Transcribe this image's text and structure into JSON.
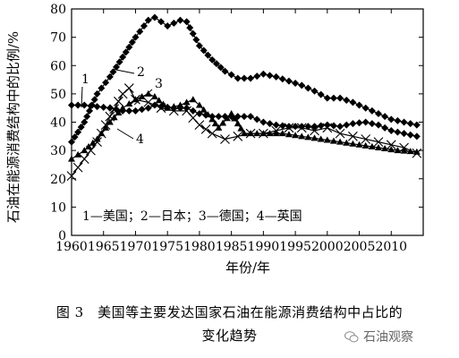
{
  "caption": {
    "line1": "图 3　美国等主要发达国家石油在能源消费结构中占比的",
    "line2": "变化趋势"
  },
  "watermark": {
    "text": "石油观察",
    "icon": "wechat-icon"
  },
  "chart_data": {
    "type": "line",
    "title": "",
    "xlabel": "年份/年",
    "ylabel": "石油在能源消费结构中的比例/%",
    "xlim": [
      1960,
      2015
    ],
    "ylim": [
      0,
      80
    ],
    "xticks": [
      1960,
      1965,
      1970,
      1975,
      1980,
      1985,
      1990,
      1995,
      2000,
      2005,
      2010
    ],
    "yticks": [
      0,
      10,
      20,
      30,
      40,
      50,
      60,
      70,
      80
    ],
    "grid": false,
    "legend_text": "1—美国；2—日本；3—德国；4—英国",
    "legend_position": "bottom-left",
    "series": [
      {
        "name": "美国",
        "label": "1",
        "marker": "diamond",
        "x": [
          1960,
          1962,
          1964,
          1966,
          1968,
          1970,
          1972,
          1973,
          1974,
          1976,
          1978,
          1980,
          1982,
          1984,
          1986,
          1988,
          1990,
          1992,
          1994,
          1996,
          1998,
          2000,
          2002,
          2004,
          2006,
          2008,
          2010,
          2012,
          2014
        ],
        "y": [
          46,
          46,
          45.5,
          45,
          44,
          44,
          45,
          46,
          45.5,
          45,
          45,
          43,
          42,
          42,
          42,
          42,
          40,
          39,
          38.5,
          38.5,
          38.5,
          39,
          38.5,
          39.5,
          40,
          39,
          37,
          36,
          35
        ]
      },
      {
        "name": "日本",
        "label": "2",
        "marker": "diamond",
        "x": [
          1960,
          1962,
          1964,
          1966,
          1968,
          1970,
          1972,
          1973,
          1975,
          1977,
          1978,
          1980,
          1982,
          1984,
          1986,
          1988,
          1990,
          1992,
          1994,
          1996,
          1998,
          2000,
          2002,
          2004,
          2006,
          2008,
          2010,
          2012,
          2014
        ],
        "y": [
          33,
          40,
          50,
          56,
          63,
          70,
          76,
          77,
          74,
          76,
          75.5,
          67,
          62,
          58,
          55.5,
          55.5,
          57,
          56,
          54.5,
          53,
          51,
          48.5,
          48.5,
          47,
          45,
          43,
          41,
          40,
          39
        ]
      },
      {
        "name": "德国",
        "label": "3",
        "marker": "triangle",
        "x": [
          1960,
          1962,
          1964,
          1966,
          1968,
          1970,
          1972,
          1973,
          1975,
          1977,
          1979,
          1980,
          1982,
          1983,
          1985,
          1987,
          1990,
          1993,
          1996,
          1999,
          2002,
          2005,
          2008,
          2011,
          2014
        ],
        "y": [
          27,
          30,
          34,
          40,
          45,
          48,
          50,
          49,
          45,
          46,
          48,
          46,
          41,
          38,
          43,
          36,
          36,
          36,
          35,
          34,
          33,
          32,
          31,
          30,
          29.5
        ]
      },
      {
        "name": "英国",
        "label": "4",
        "marker": "x",
        "x": [
          1960,
          1962,
          1964,
          1966,
          1968,
          1969,
          1970,
          1972,
          1974,
          1976,
          1978,
          1980,
          1982,
          1984,
          1986,
          1988,
          1990,
          1992,
          1994,
          1996,
          1998,
          2000,
          2002,
          2004,
          2006,
          2008,
          2010,
          2012,
          2014
        ],
        "y": [
          21,
          27,
          33,
          42,
          50,
          52,
          48,
          47,
          45,
          44,
          44,
          39,
          36,
          34,
          35,
          36,
          36,
          37,
          38,
          38,
          37,
          38,
          36,
          35,
          34,
          33,
          32,
          31,
          29
        ]
      }
    ]
  }
}
